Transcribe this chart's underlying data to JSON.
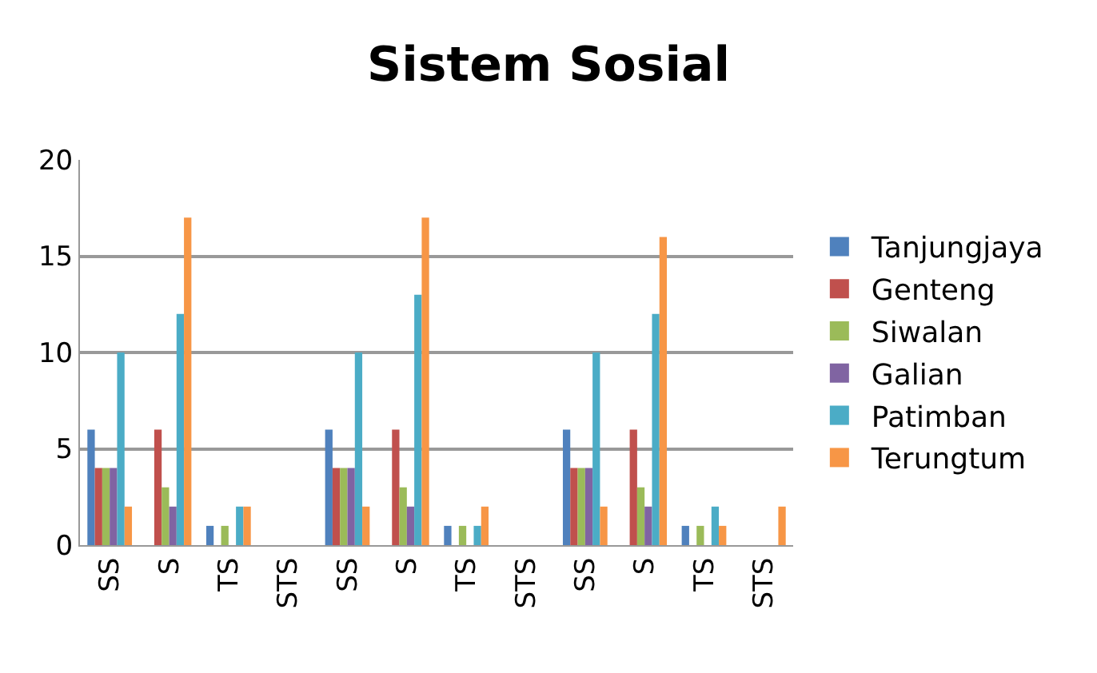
{
  "chart_data": {
    "type": "bar",
    "title": "Sistem Sosial",
    "categories": [
      "SS",
      "S",
      "TS",
      "STS",
      "SS",
      "S",
      "TS",
      "STS",
      "SS",
      "S",
      "TS",
      "STS"
    ],
    "series": [
      {
        "name": "Tanjungjaya",
        "color": "#4f81bd",
        "values": [
          6,
          0,
          1,
          0,
          6,
          0,
          1,
          0,
          6,
          0,
          1,
          0
        ]
      },
      {
        "name": "Genteng",
        "color": "#c0504d",
        "values": [
          4,
          6,
          0,
          0,
          4,
          6,
          0,
          0,
          4,
          6,
          0,
          0
        ]
      },
      {
        "name": "Siwalan",
        "color": "#9bbb59",
        "values": [
          4,
          3,
          1,
          0,
          4,
          3,
          1,
          0,
          4,
          3,
          1,
          0
        ]
      },
      {
        "name": "Galian",
        "color": "#8064a2",
        "values": [
          4,
          2,
          0,
          0,
          4,
          2,
          0,
          0,
          4,
          2,
          0,
          0
        ]
      },
      {
        "name": "Patimban",
        "color": "#4bacc6",
        "values": [
          10,
          12,
          2,
          0,
          10,
          13,
          1,
          0,
          10,
          12,
          2,
          0
        ]
      },
      {
        "name": "Terungtum",
        "color": "#f79646",
        "values": [
          2,
          17,
          2,
          0,
          2,
          17,
          2,
          0,
          2,
          16,
          1,
          2
        ]
      }
    ],
    "ylim": [
      0,
      20
    ],
    "yticks": [
      0,
      5,
      10,
      15,
      20
    ],
    "grid": "y",
    "legend": "right"
  }
}
